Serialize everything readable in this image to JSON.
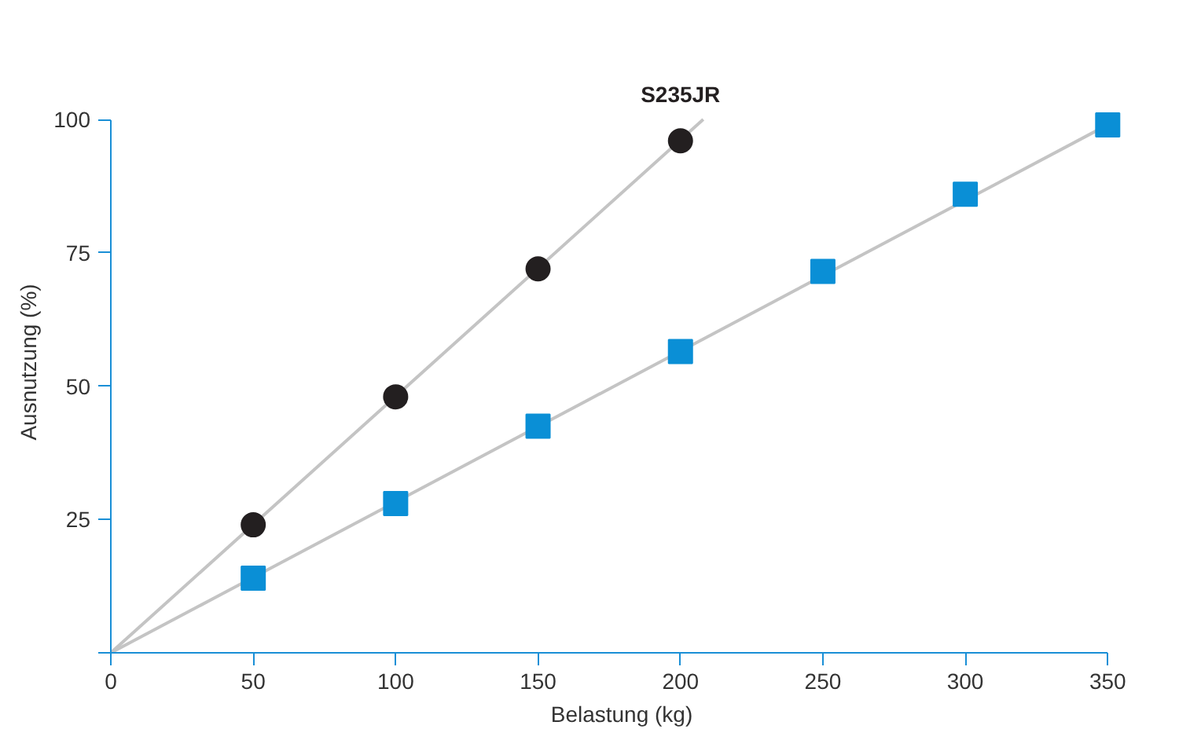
{
  "chart_data": {
    "type": "scatter",
    "xlabel": "Belastung (kg)",
    "ylabel": "Ausnutzung (%)",
    "xlim": [
      0,
      350
    ],
    "ylim": [
      0,
      100
    ],
    "xticks": [
      0,
      50,
      100,
      150,
      200,
      250,
      300,
      350
    ],
    "yticks": [
      {
        "value": 0,
        "label": null
      },
      25,
      50,
      75,
      100
    ],
    "grid": false,
    "series": [
      {
        "type": "line",
        "color": "#c4c4c4",
        "x": [
          0,
          208
        ],
        "values": [
          0,
          100
        ],
        "marker": "none"
      },
      {
        "type": "line",
        "color": "#c4c4c4",
        "x": [
          0,
          350
        ],
        "values": [
          0,
          99
        ],
        "marker": "none"
      },
      {
        "name": "S235JR",
        "color": "#231f20",
        "marker": "circle",
        "x": [
          50,
          100,
          150,
          200
        ],
        "values": [
          24,
          48,
          72,
          96
        ]
      },
      {
        "color": "#0a8fd6",
        "marker": "square",
        "x": [
          50,
          100,
          150,
          200,
          250,
          300,
          350
        ],
        "values": [
          14,
          28,
          42.5,
          56.5,
          71.5,
          86,
          99
        ]
      }
    ]
  }
}
